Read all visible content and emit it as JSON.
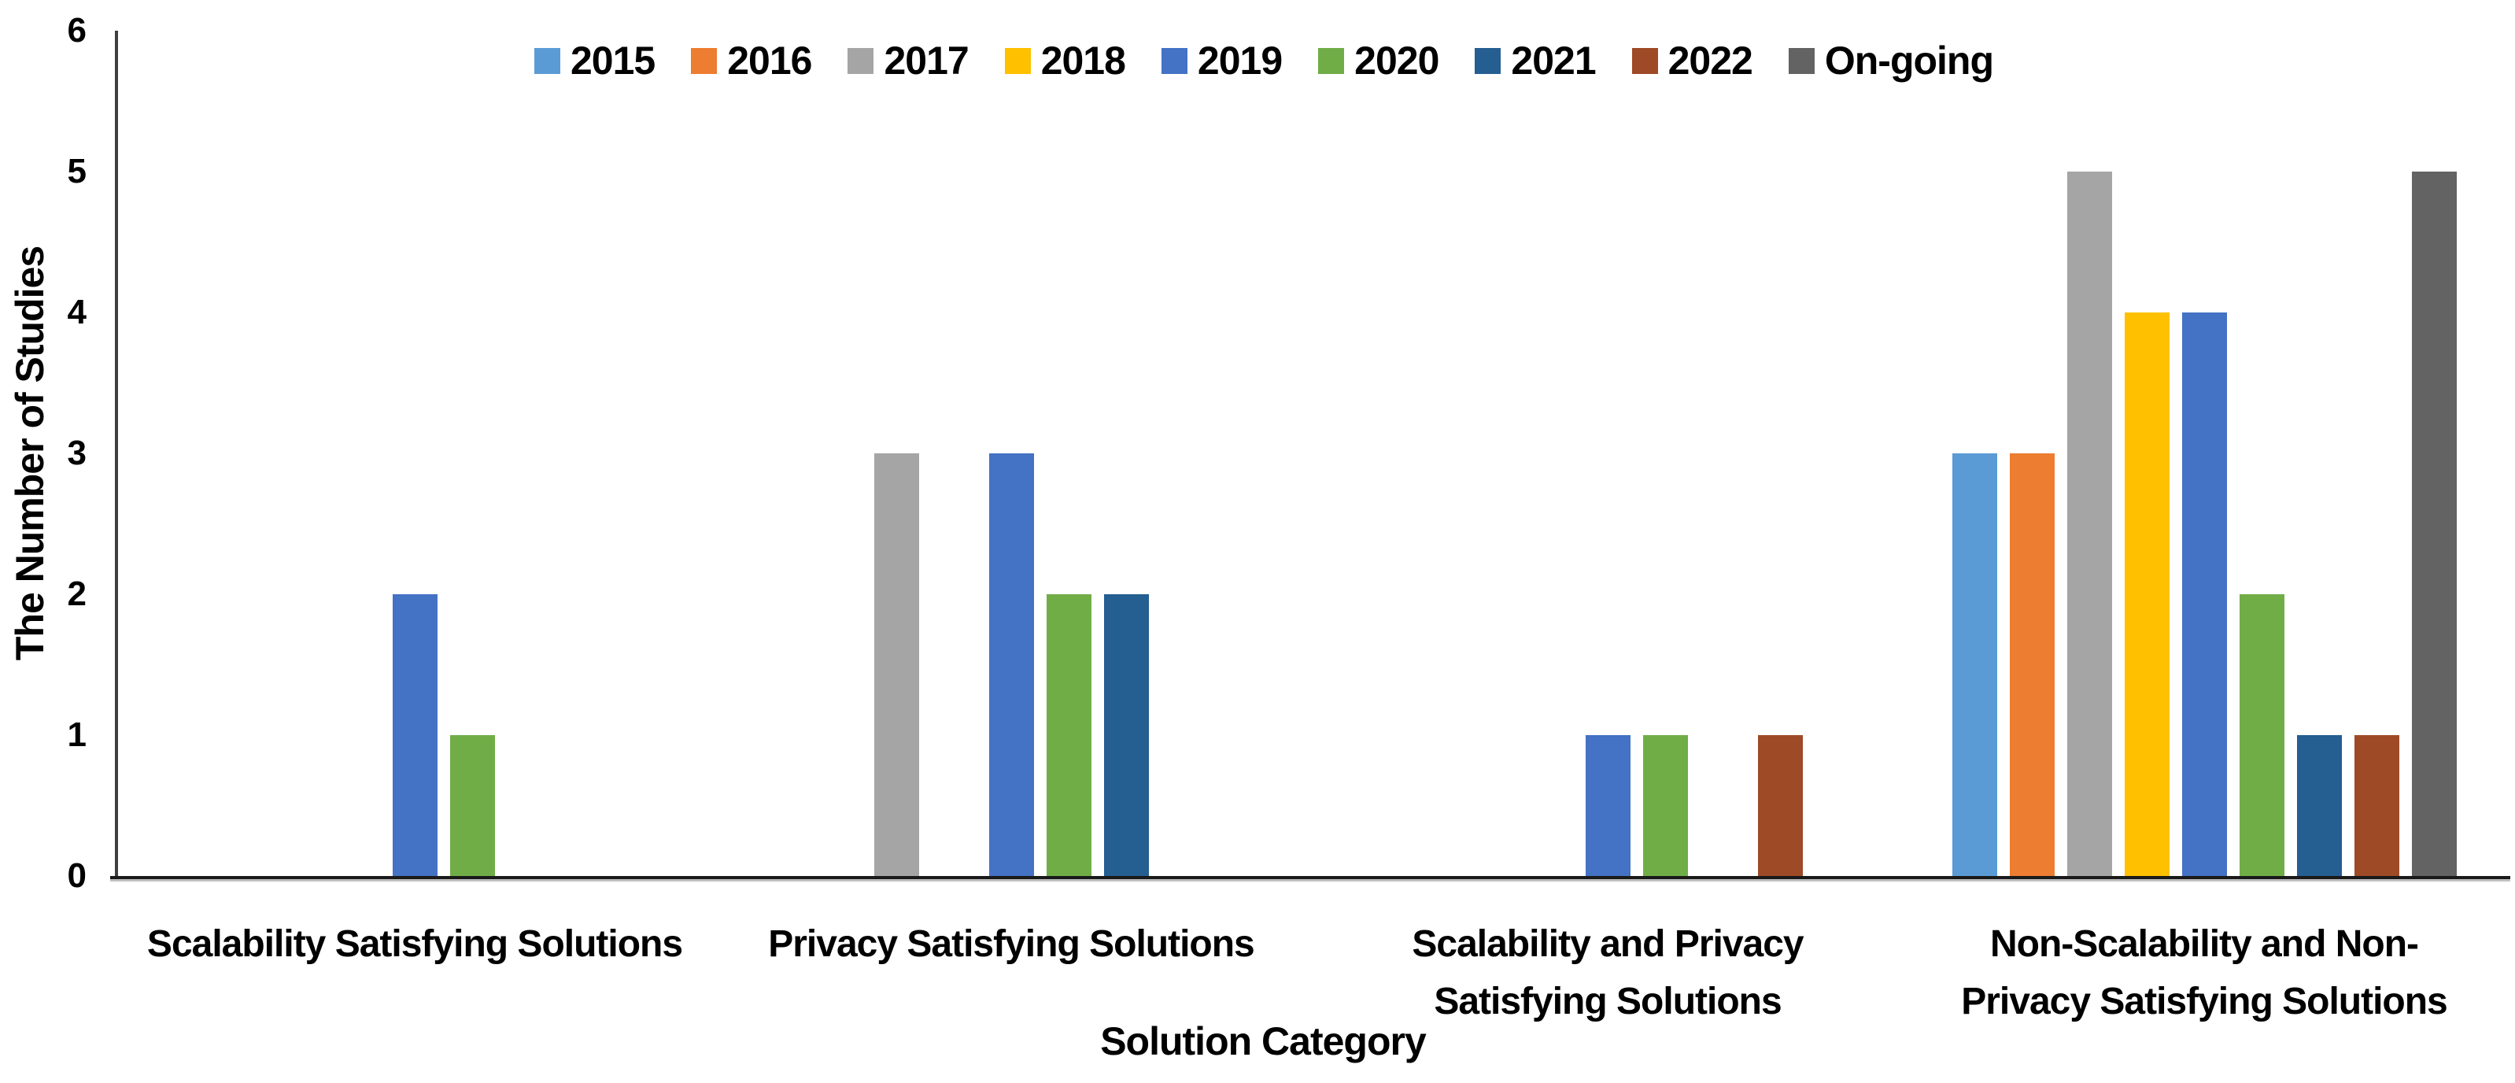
{
  "chart": {
    "y_axis_title": "The Number of Studies",
    "x_axis_title": "Solution Category",
    "y_ticks": [
      "0",
      "1",
      "2",
      "3",
      "4",
      "5",
      "6"
    ]
  },
  "chart_data": {
    "type": "bar",
    "title": "",
    "xlabel": "Solution Category",
    "ylabel": "The Number of Studies",
    "ylim": [
      0,
      6
    ],
    "y_tick_step": 1,
    "grid": false,
    "legend_position": "top-center",
    "background": "#ffffff",
    "categories": [
      "Scalability Satisfying Solutions",
      "Privacy Satisfying Solutions",
      "Scalability and Privacy\nSatisfying Solutions",
      "Non-Scalability and Non-\nPrivacy Satisfying Solutions"
    ],
    "series": [
      {
        "name": "2015",
        "color": "#5B9BD5",
        "values": [
          0,
          0,
          0,
          3
        ]
      },
      {
        "name": "2016",
        "color": "#ED7D31",
        "values": [
          0,
          0,
          0,
          3
        ]
      },
      {
        "name": "2017",
        "color": "#A5A5A5",
        "values": [
          0,
          3,
          0,
          5
        ]
      },
      {
        "name": "2018",
        "color": "#FFC000",
        "values": [
          0,
          0,
          0,
          4
        ]
      },
      {
        "name": "2019",
        "color": "#4472C4",
        "values": [
          2,
          3,
          1,
          4
        ]
      },
      {
        "name": "2020",
        "color": "#70AD47",
        "values": [
          1,
          2,
          1,
          2
        ]
      },
      {
        "name": "2021",
        "color": "#255E91",
        "values": [
          0,
          2,
          0,
          1
        ]
      },
      {
        "name": "2022",
        "color": "#9E4A26",
        "values": [
          0,
          0,
          1,
          1
        ]
      },
      {
        "name": "On-going",
        "color": "#636363",
        "values": [
          0,
          0,
          0,
          5
        ]
      }
    ]
  }
}
